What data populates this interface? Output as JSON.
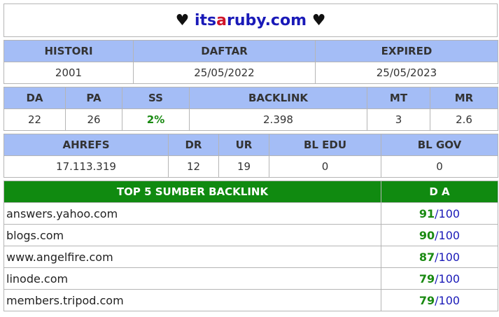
{
  "site": {
    "heart": "♥",
    "name_part1": "its",
    "name_part2": "a",
    "name_part3": "ruby.com"
  },
  "registration": {
    "headers": [
      "HISTORI",
      "DAFTAR",
      "EXPIRED"
    ],
    "values": [
      "2001",
      "25/05/2022",
      "25/05/2023"
    ]
  },
  "metrics": {
    "headers": [
      "DA",
      "PA",
      "SS",
      "BACKLINK",
      "MT",
      "MR"
    ],
    "values": [
      "22",
      "26",
      "2%",
      "2.398",
      "3",
      "2.6"
    ]
  },
  "ahrefs": {
    "headers": [
      "AHREFS",
      "DR",
      "UR",
      "BL EDU",
      "BL GOV"
    ],
    "values": [
      "17.113.319",
      "12",
      "19",
      "0",
      "0"
    ]
  },
  "backlinks": {
    "header_source": "TOP 5 SUMBER BACKLINK",
    "header_da": "D A",
    "max": "100",
    "rows": [
      {
        "domain": "answers.yahoo.com",
        "da": "91"
      },
      {
        "domain": "blogs.com",
        "da": "90"
      },
      {
        "domain": "www.angelfire.com",
        "da": "87"
      },
      {
        "domain": "linode.com",
        "da": "79"
      },
      {
        "domain": "members.tripod.com",
        "da": "79"
      }
    ]
  },
  "colors": {
    "header_blue": "#a4bdf6",
    "header_green": "#108a10",
    "link_blue": "#1a1ab8",
    "accent_red": "#d0142a",
    "value_green": "#1a8a12"
  }
}
